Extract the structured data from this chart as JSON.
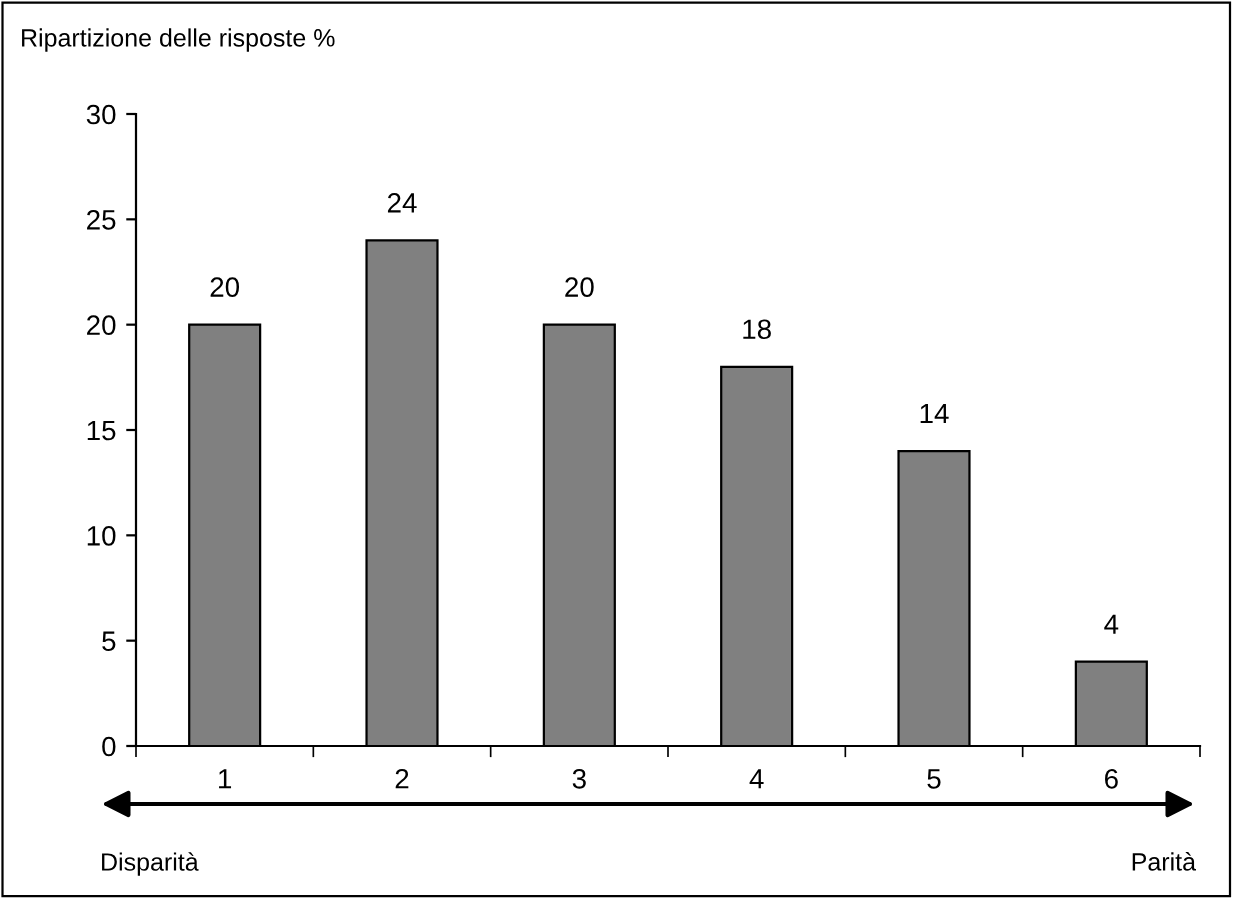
{
  "chart_data": {
    "type": "bar",
    "title": "Ripartizione delle risposte %",
    "categories": [
      "1",
      "2",
      "3",
      "4",
      "5",
      "6"
    ],
    "values": [
      20,
      24,
      20,
      18,
      14,
      4
    ],
    "color": "#808080",
    "ylim": [
      0,
      30
    ],
    "yticks": [
      0,
      5,
      10,
      15,
      20,
      25,
      30
    ],
    "data_labels": true,
    "grid": false,
    "legend": false,
    "annotations": [
      "Disparità",
      "Parità"
    ]
  }
}
